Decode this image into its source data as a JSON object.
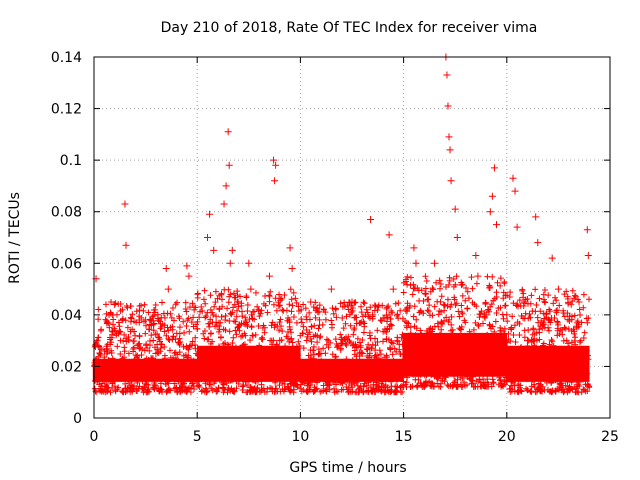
{
  "chart_data": {
    "type": "scatter",
    "title": "Day 210 of 2018, Rate Of TEC Index for receiver vima",
    "xlabel": "GPS time / hours",
    "ylabel": "ROTI / TECUs",
    "xlim": [
      0,
      25
    ],
    "ylim": [
      0,
      0.14
    ],
    "xticks": [
      0,
      5,
      10,
      15,
      20,
      25
    ],
    "xtick_labels": [
      "0",
      "5",
      "10",
      "15",
      "20",
      "25"
    ],
    "yticks": [
      0,
      0.02,
      0.04,
      0.06,
      0.08,
      0.1,
      0.12,
      0.14
    ],
    "ytick_labels": [
      "0",
      "0.02",
      "0.04",
      "0.06",
      "0.08",
      "0.1",
      "0.12",
      "0.14"
    ],
    "grid": true,
    "marker": "+",
    "color": "#ff0000",
    "series": [
      {
        "name": "ROTI",
        "x": [
          0.05,
          0.1,
          0.15,
          0.2,
          0.5,
          1.0,
          1.5,
          1.55,
          2.0,
          2.5,
          3.0,
          3.5,
          3.6,
          4.0,
          4.5,
          4.6,
          5.0,
          5.5,
          5.6,
          5.8,
          6.0,
          6.3,
          6.4,
          6.5,
          6.55,
          6.6,
          6.7,
          7.0,
          7.5,
          7.6,
          8.0,
          8.5,
          8.7,
          8.75,
          8.8,
          9.0,
          9.5,
          9.6,
          10.0,
          10.5,
          11.0,
          11.5,
          12.0,
          12.5,
          13.0,
          13.4,
          13.5,
          14.0,
          14.3,
          14.5,
          15.0,
          15.5,
          15.6,
          16.0,
          16.5,
          17.0,
          17.05,
          17.1,
          17.15,
          17.2,
          17.25,
          17.3,
          17.5,
          17.6,
          18.0,
          18.5,
          18.6,
          19.0,
          19.2,
          19.3,
          19.4,
          19.5,
          20.0,
          20.3,
          20.4,
          20.5,
          21.0,
          21.4,
          21.5,
          22.0,
          22.2,
          22.5,
          23.0,
          23.5,
          23.9,
          23.95
        ],
        "y": [
          0.02,
          0.054,
          0.03,
          0.018,
          0.022,
          0.044,
          0.083,
          0.067,
          0.02,
          0.038,
          0.025,
          0.058,
          0.05,
          0.022,
          0.059,
          0.055,
          0.021,
          0.07,
          0.079,
          0.065,
          0.025,
          0.083,
          0.09,
          0.111,
          0.098,
          0.06,
          0.065,
          0.02,
          0.06,
          0.05,
          0.025,
          0.055,
          0.1,
          0.092,
          0.098,
          0.03,
          0.066,
          0.058,
          0.02,
          0.045,
          0.025,
          0.05,
          0.02,
          0.045,
          0.025,
          0.077,
          0.04,
          0.022,
          0.071,
          0.05,
          0.02,
          0.066,
          0.06,
          0.025,
          0.06,
          0.02,
          0.14,
          0.133,
          0.121,
          0.109,
          0.104,
          0.092,
          0.081,
          0.07,
          0.03,
          0.063,
          0.055,
          0.04,
          0.08,
          0.086,
          0.097,
          0.075,
          0.04,
          0.093,
          0.088,
          0.074,
          0.03,
          0.078,
          0.068,
          0.035,
          0.062,
          0.05,
          0.025,
          0.045,
          0.073,
          0.063
        ]
      }
    ],
    "dense_band": {
      "description_values": [
        {
          "x_start": 0,
          "x_end": 5,
          "low": 0.01,
          "high": 0.035
        },
        {
          "x_start": 5,
          "x_end": 10,
          "low": 0.01,
          "high": 0.04
        },
        {
          "x_start": 10,
          "x_end": 15,
          "low": 0.01,
          "high": 0.035
        },
        {
          "x_start": 15,
          "x_end": 20,
          "low": 0.012,
          "high": 0.045
        },
        {
          "x_start": 20,
          "x_end": 24,
          "low": 0.01,
          "high": 0.04
        }
      ]
    }
  }
}
